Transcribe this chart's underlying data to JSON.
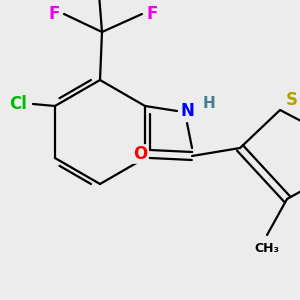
{
  "bg_color": "#ececec",
  "bond_color": "#000000",
  "bond_width": 1.6,
  "colors": {
    "N": "#0000ff",
    "O": "#ff0000",
    "S": "#b8a000",
    "Cl": "#00bb00",
    "F": "#ee00ee",
    "H": "#408090"
  },
  "figsize": [
    3.0,
    3.0
  ],
  "dpi": 100
}
